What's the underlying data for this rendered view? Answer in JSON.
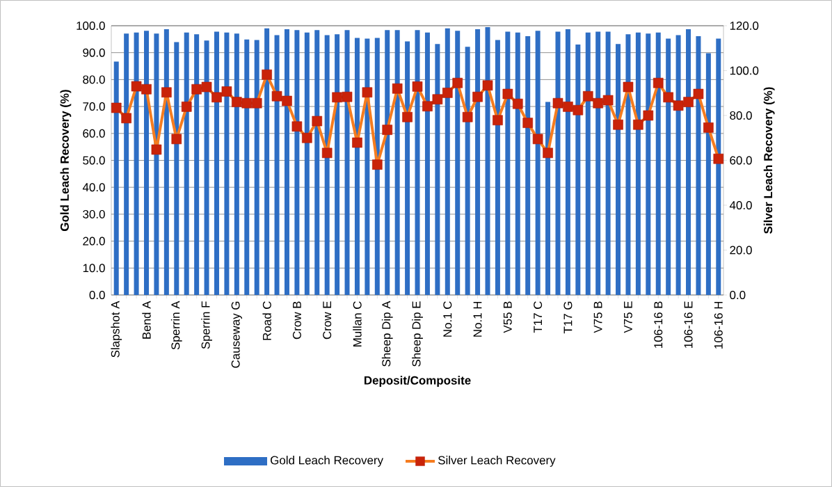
{
  "chart_data": {
    "type": "bar",
    "xlabel": "Deposit/Composite",
    "ylabel": "Gold Leach Recovery (%)",
    "y2label": "Silver Leach Recovery (%)",
    "categories": [
      "Slapshot A",
      null,
      null,
      "Bend A",
      null,
      null,
      "Sperrin A",
      null,
      null,
      "Sperrin F",
      null,
      null,
      "Causeway G",
      null,
      null,
      "Road C",
      null,
      null,
      "Crow B",
      null,
      null,
      "Crow E",
      null,
      null,
      "Mullan C",
      null,
      null,
      "Sheep Dip A",
      null,
      null,
      "Sheep Dip E",
      null,
      null,
      "No.1 C",
      null,
      null,
      "No.1 H",
      null,
      null,
      "V55 B",
      null,
      null,
      "T17 C",
      null,
      null,
      "T17 G",
      null,
      null,
      "V75 B",
      null,
      null,
      "V75 E",
      null,
      null,
      "106-16 B",
      null,
      null,
      "106-16 E",
      null,
      null,
      "106-16 H"
    ],
    "series": [
      {
        "name": "Gold Leach Recovery",
        "color": "#2e6ec4",
        "values": [
          86.7,
          97.1,
          97.5,
          98.1,
          97.1,
          98.7,
          93.9,
          97.5,
          96.8,
          94.5,
          97.8,
          97.5,
          97.1,
          94.9,
          94.7,
          99.0,
          96.5,
          98.7,
          98.4,
          97.5,
          98.4,
          96.5,
          96.8,
          98.4,
          95.5,
          95.2,
          95.5,
          98.4,
          98.4,
          94.2,
          98.4,
          97.5,
          93.2,
          99.0,
          98.1,
          92.2,
          98.7,
          99.5,
          94.7,
          97.8,
          97.5,
          96.1,
          98.1,
          71.7,
          97.8,
          98.7,
          93.0,
          97.5,
          97.8,
          97.8,
          93.2,
          96.8,
          97.5,
          97.1,
          97.5,
          95.2,
          96.5,
          98.7,
          96.1,
          89.8,
          95.2
        ]
      },
      {
        "name": "Silver Leach Recovery",
        "type": "line",
        "axis": "y2",
        "color": "#f57c1f",
        "marker": "square",
        "values": [
          83.4,
          78.8,
          93.0,
          91.7,
          64.8,
          90.3,
          69.5,
          83.9,
          91.7,
          92.7,
          88.1,
          90.7,
          86.0,
          85.5,
          85.5,
          98.2,
          88.6,
          86.5,
          75.1,
          70.0,
          77.5,
          63.3,
          88.1,
          88.3,
          67.9,
          90.3,
          58.1,
          73.6,
          92.0,
          79.3,
          92.9,
          84.1,
          87.2,
          90.1,
          94.5,
          79.3,
          88.3,
          93.4,
          77.9,
          89.6,
          85.2,
          76.7,
          69.5,
          63.3,
          85.5,
          83.9,
          82.4,
          88.6,
          85.5,
          86.8,
          75.9,
          92.7,
          75.9,
          80.0,
          94.5,
          88.1,
          84.4,
          86.0,
          89.6,
          74.6,
          60.7
        ]
      }
    ],
    "ylim": [
      0,
      100
    ],
    "yticks": [
      {
        "value": 0,
        "label": "0.0"
      },
      {
        "value": 10,
        "label": "10.0"
      },
      {
        "value": 20,
        "label": "20.0"
      },
      {
        "value": 30,
        "label": "30.0"
      },
      {
        "value": 40,
        "label": "40.0"
      },
      {
        "value": 50,
        "label": "50.0"
      },
      {
        "value": 60,
        "label": "60.0"
      },
      {
        "value": 70,
        "label": "70.0"
      },
      {
        "value": 80,
        "label": "80.0"
      },
      {
        "value": 90,
        "label": "90.0"
      },
      {
        "value": 100,
        "label": "100.0"
      }
    ],
    "y2lim": [
      0,
      120
    ],
    "y2ticks": [
      {
        "value": 0,
        "label": "0.0"
      },
      {
        "value": 20,
        "label": "20.0"
      },
      {
        "value": 40,
        "label": "40.0"
      },
      {
        "value": 60,
        "label": "60.0"
      },
      {
        "value": 80,
        "label": "80.0"
      },
      {
        "value": 100,
        "label": "100.0"
      },
      {
        "value": 120,
        "label": "120.0"
      }
    ],
    "grid": "y",
    "legend": "bottom"
  }
}
